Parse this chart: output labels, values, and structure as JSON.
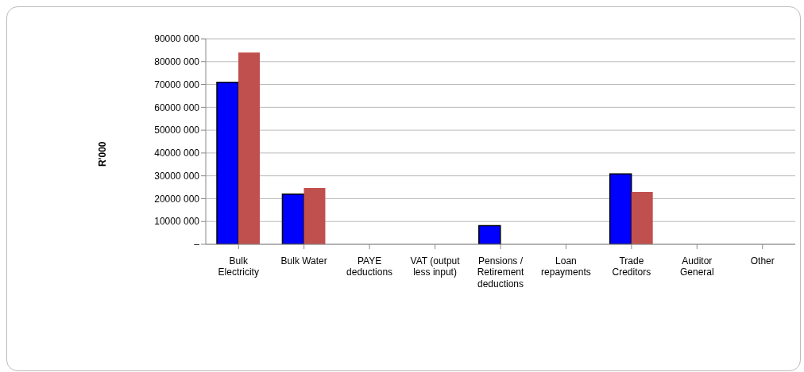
{
  "chart_data": {
    "type": "bar",
    "ylabel": "R'000",
    "categories": [
      "Bulk Electricity",
      "Bulk Water",
      "PAYE deductions",
      "VAT (output less input)",
      "Pensions / Retirement deductions",
      "Loan repayments",
      "Trade Creditors",
      "Auditor General",
      "Other"
    ],
    "series": [
      {
        "color": "#0000ff",
        "values": [
          71000000,
          22000000,
          0,
          0,
          8200000,
          0,
          30800000,
          0,
          0
        ]
      },
      {
        "color": "#c0504d",
        "values": [
          84000000,
          24700000,
          0,
          0,
          0,
          0,
          22900000,
          0,
          0
        ]
      }
    ],
    "ylim": [
      0,
      90000000
    ],
    "yticks": [
      {
        "value": 0,
        "label": "–"
      },
      {
        "value": 10000000,
        "label": "10000 000"
      },
      {
        "value": 20000000,
        "label": "20000 000"
      },
      {
        "value": 30000000,
        "label": "30000 000"
      },
      {
        "value": 40000000,
        "label": "40000 000"
      },
      {
        "value": 50000000,
        "label": "50000 000"
      },
      {
        "value": 60000000,
        "label": "60000 000"
      },
      {
        "value": 70000000,
        "label": "70000 000"
      },
      {
        "value": 80000000,
        "label": "80000 000"
      },
      {
        "value": 90000000,
        "label": "90000 000"
      }
    ],
    "grid": "y",
    "legend": false
  }
}
